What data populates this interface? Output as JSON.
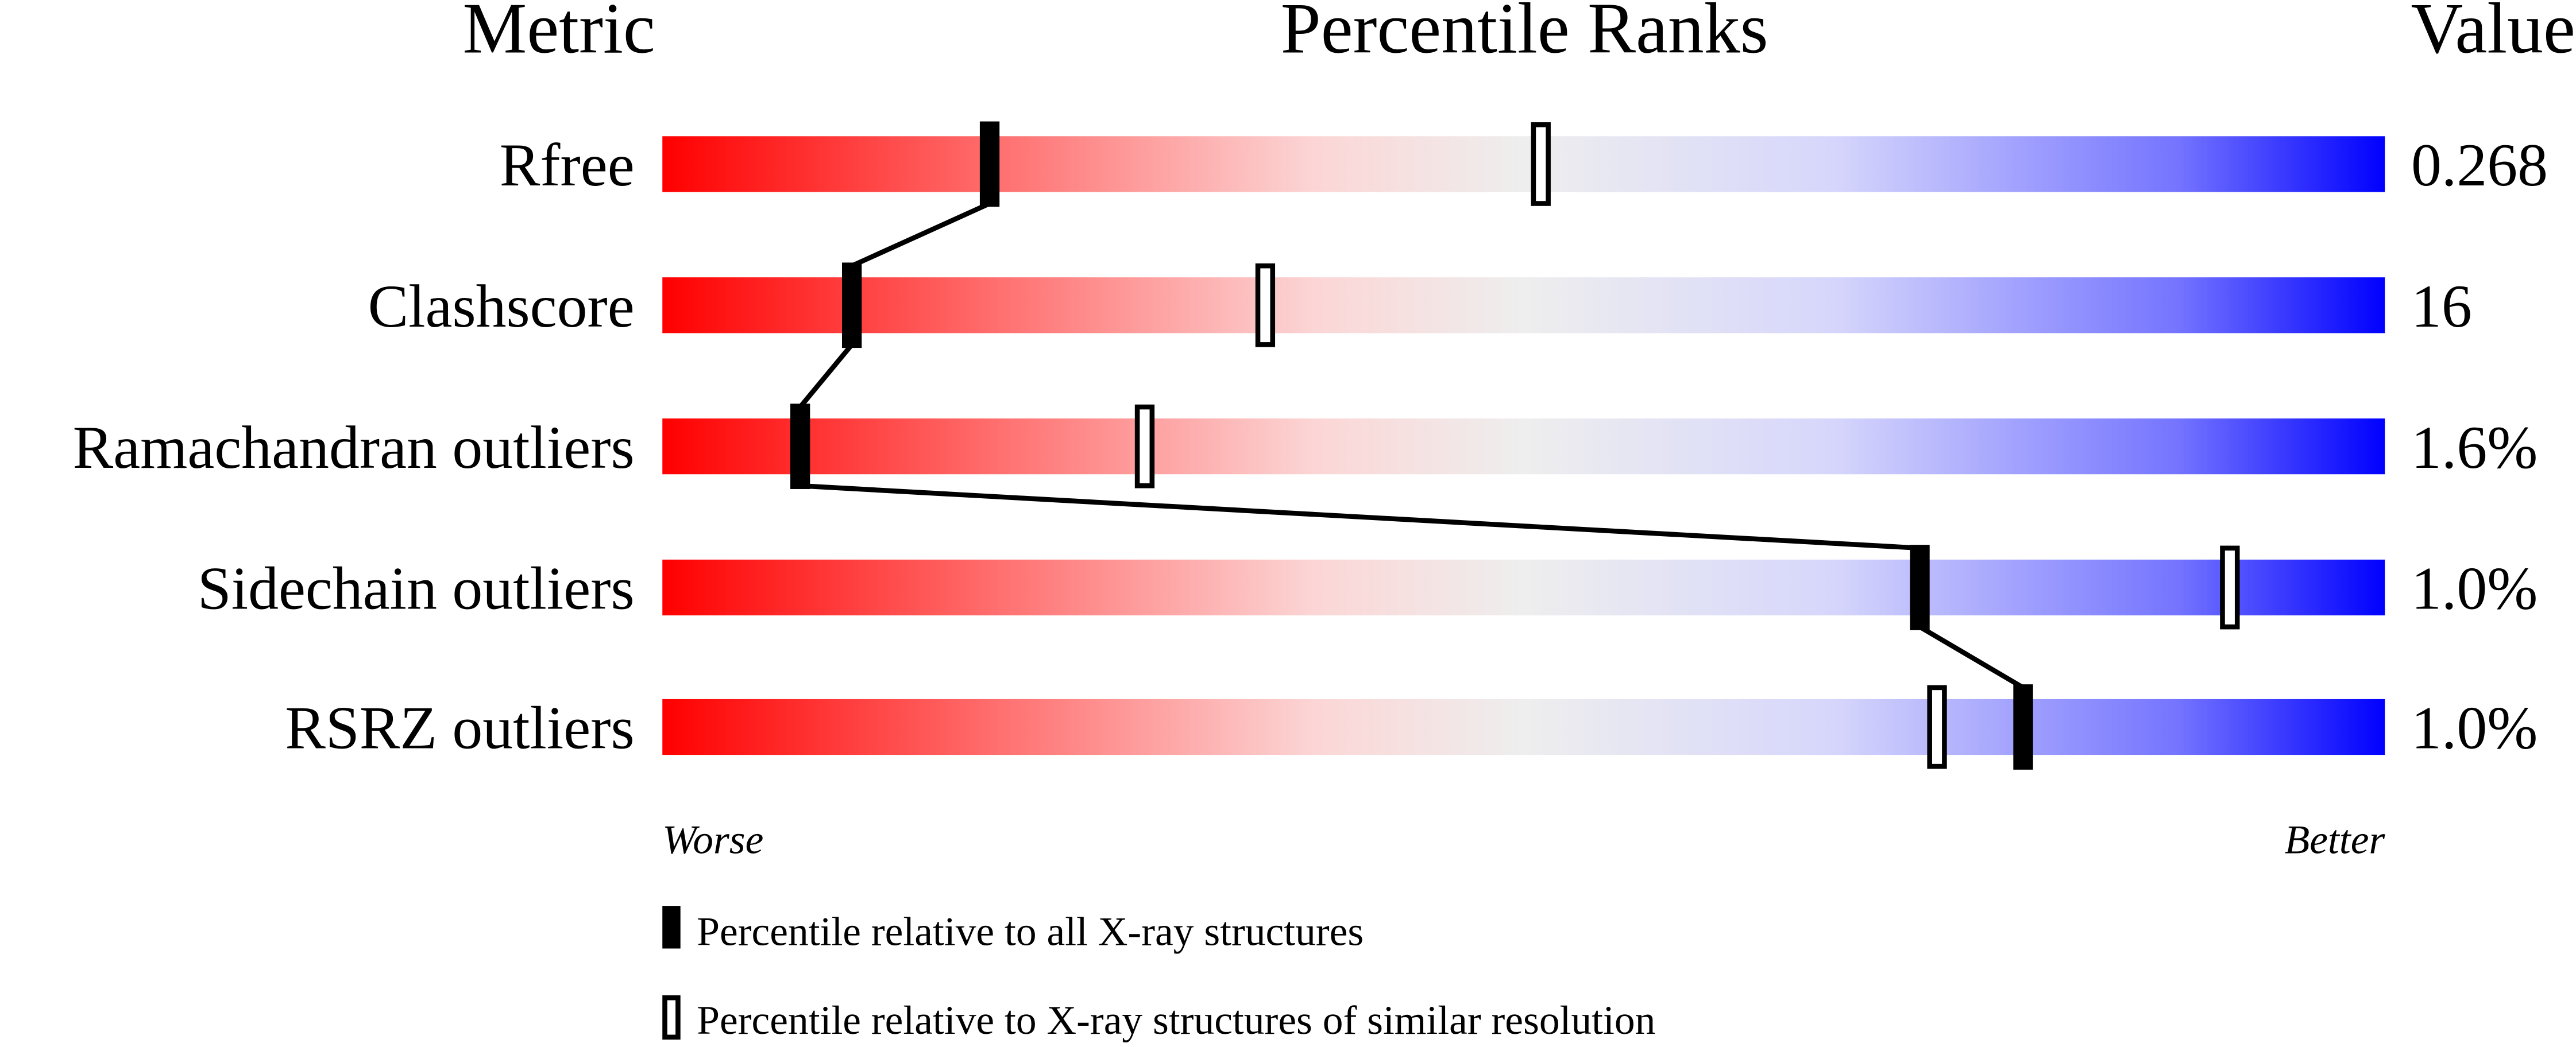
{
  "chart_data": {
    "type": "percentile-slider",
    "headers": {
      "metric": "Metric",
      "ranks": "Percentile Ranks",
      "value": "Value"
    },
    "xlim": [
      0,
      100
    ],
    "metrics": [
      {
        "name": "Rfree",
        "value": "0.268",
        "percentile_all": 19,
        "percentile_similar": 51
      },
      {
        "name": "Clashscore",
        "value": "16",
        "percentile_all": 11,
        "percentile_similar": 35
      },
      {
        "name": "Ramachandran outliers",
        "value": "1.6%",
        "percentile_all": 8,
        "percentile_similar": 28
      },
      {
        "name": "Sidechain outliers",
        "value": "1.0%",
        "percentile_all": 73,
        "percentile_similar": 91
      },
      {
        "name": "RSRZ outliers",
        "value": "1.0%",
        "percentile_all": 79,
        "percentile_similar": 74
      }
    ],
    "scale_labels": {
      "left": "Worse",
      "right": "Better"
    },
    "legend": {
      "filled": "Percentile relative to all X-ray structures",
      "open": "Percentile relative to X-ray structures of similar resolution"
    },
    "colors": {
      "worse": "#ff0000",
      "middle": "#eeeeee",
      "better": "#0000ff",
      "marker": "#000000"
    }
  }
}
